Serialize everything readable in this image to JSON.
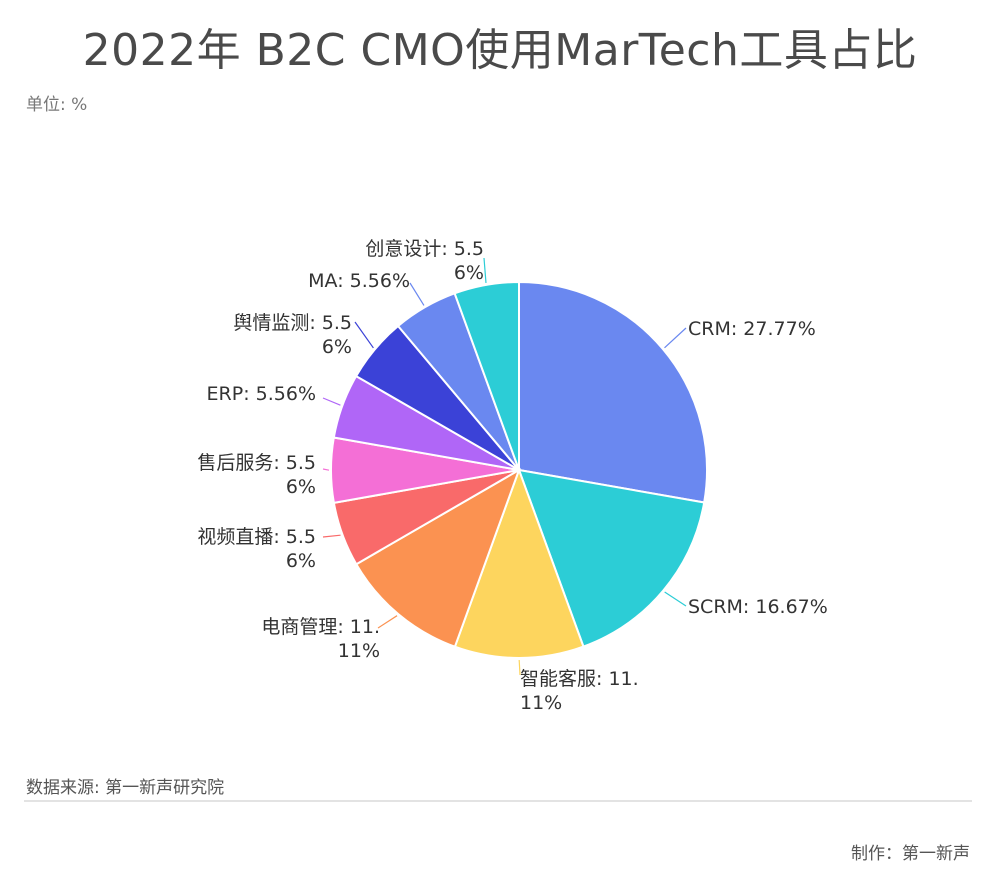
{
  "title": "2022年 B2C CMO使用MarTech工具占比",
  "unit": "单位: %",
  "footer": {
    "source": "数据来源: 第一新声研究院",
    "credit": "制作：第一新声"
  },
  "chart_data": {
    "type": "pie",
    "slices": [
      {
        "name": "CRM",
        "value": 27.77,
        "color": "#6a88f0",
        "label_lines": [
          "CRM: 27.77%"
        ]
      },
      {
        "name": "SCRM",
        "value": 16.67,
        "color": "#2ccdd6",
        "label_lines": [
          "SCRM: 16.67%"
        ]
      },
      {
        "name": "智能客服",
        "value": 11.11,
        "color": "#fdd55e",
        "label_lines": [
          "智能客服: 11.",
          "11%"
        ]
      },
      {
        "name": "电商管理",
        "value": 11.11,
        "color": "#fb9251",
        "label_lines": [
          "电商管理: 11.",
          "11%"
        ]
      },
      {
        "name": "视频直播",
        "value": 5.56,
        "color": "#f96a6a",
        "label_lines": [
          "视频直播: 5.5",
          "6%"
        ]
      },
      {
        "name": "售后服务",
        "value": 5.56,
        "color": "#f46fd6",
        "label_lines": [
          "售后服务: 5.5",
          "6%"
        ]
      },
      {
        "name": "ERP",
        "value": 5.56,
        "color": "#b066f7",
        "label_lines": [
          "ERP: 5.56%"
        ]
      },
      {
        "name": "舆情监测",
        "value": 5.56,
        "color": "#3b42d7",
        "label_lines": [
          "舆情监测: 5.5",
          "6%"
        ]
      },
      {
        "name": "MA",
        "value": 5.56,
        "color": "#6a88f0",
        "label_lines": [
          "MA: 5.56%"
        ]
      },
      {
        "name": "创意设计",
        "value": 5.56,
        "color": "#2ccdd6",
        "label_lines": [
          "创意设计: 5.5",
          "6%"
        ]
      }
    ]
  }
}
